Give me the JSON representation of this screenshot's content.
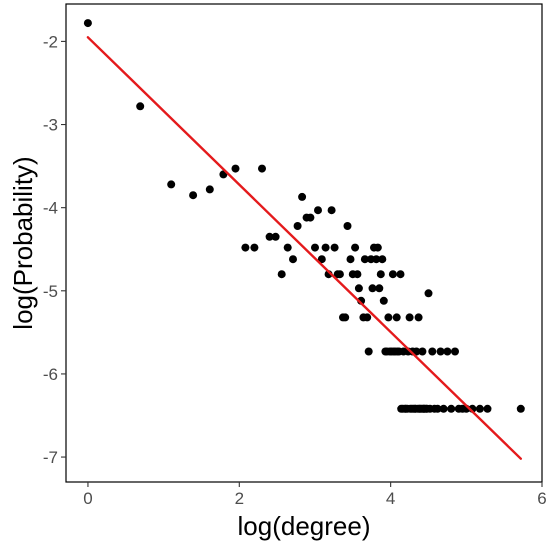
{
  "chart_data": {
    "type": "scatter",
    "title": "",
    "xlabel": "log(degree)",
    "ylabel": "log(Probability)",
    "xlim": [
      -0.29,
      6.0
    ],
    "ylim": [
      -7.3,
      -1.55
    ],
    "xticks": [
      0,
      2,
      4,
      6
    ],
    "yticks": [
      -7,
      -6,
      -5,
      -4,
      -3,
      -2
    ],
    "grid": false,
    "legend": "none",
    "colors": {
      "points": "#000000",
      "fit_line": "#e41a1c",
      "panel_border": "#000000",
      "tick_text": "#4d4d4d"
    },
    "fit_line": {
      "x": [
        0,
        5.72
      ],
      "y": [
        -1.95,
        -7.02
      ]
    },
    "points": [
      [
        0,
        -1.78
      ],
      [
        0.69,
        -2.78
      ],
      [
        1.1,
        -3.72
      ],
      [
        1.39,
        -3.85
      ],
      [
        1.61,
        -3.78
      ],
      [
        1.79,
        -3.6
      ],
      [
        1.95,
        -3.53
      ],
      [
        2.08,
        -4.48
      ],
      [
        2.2,
        -4.48
      ],
      [
        2.3,
        -3.53
      ],
      [
        2.4,
        -4.35
      ],
      [
        2.48,
        -4.35
      ],
      [
        2.56,
        -4.8
      ],
      [
        2.64,
        -4.48
      ],
      [
        2.71,
        -4.62
      ],
      [
        2.77,
        -4.22
      ],
      [
        2.83,
        -3.87
      ],
      [
        2.89,
        -4.12
      ],
      [
        2.94,
        -4.12
      ],
      [
        3.0,
        -4.48
      ],
      [
        3.04,
        -4.03
      ],
      [
        3.09,
        -4.62
      ],
      [
        3.14,
        -4.48
      ],
      [
        3.18,
        -4.8
      ],
      [
        3.22,
        -4.03
      ],
      [
        3.26,
        -4.48
      ],
      [
        3.3,
        -4.8
      ],
      [
        3.33,
        -4.8
      ],
      [
        3.37,
        -5.32
      ],
      [
        3.4,
        -5.32
      ],
      [
        3.43,
        -4.22
      ],
      [
        3.47,
        -4.62
      ],
      [
        3.5,
        -4.8
      ],
      [
        3.53,
        -4.48
      ],
      [
        3.56,
        -4.8
      ],
      [
        3.58,
        -4.97
      ],
      [
        3.61,
        -5.12
      ],
      [
        3.64,
        -5.32
      ],
      [
        3.66,
        -4.62
      ],
      [
        3.69,
        -5.32
      ],
      [
        3.71,
        -5.73
      ],
      [
        3.74,
        -4.62
      ],
      [
        3.76,
        -4.97
      ],
      [
        3.78,
        -4.48
      ],
      [
        3.81,
        -4.62
      ],
      [
        3.83,
        -4.48
      ],
      [
        3.85,
        -4.97
      ],
      [
        3.87,
        -4.8
      ],
      [
        3.89,
        -4.62
      ],
      [
        3.91,
        -5.12
      ],
      [
        3.93,
        -5.73
      ],
      [
        3.95,
        -5.73
      ],
      [
        3.97,
        -5.32
      ],
      [
        3.99,
        -5.73
      ],
      [
        4.01,
        -5.73
      ],
      [
        4.03,
        -4.8
      ],
      [
        4.04,
        -5.73
      ],
      [
        4.06,
        -5.73
      ],
      [
        4.08,
        -5.32
      ],
      [
        4.09,
        -5.73
      ],
      [
        4.11,
        -5.73
      ],
      [
        4.13,
        -4.8
      ],
      [
        4.14,
        -6.42
      ],
      [
        4.16,
        -6.42
      ],
      [
        4.17,
        -5.73
      ],
      [
        4.19,
        -6.42
      ],
      [
        4.2,
        -6.42
      ],
      [
        4.22,
        -6.42
      ],
      [
        4.23,
        -5.73
      ],
      [
        4.25,
        -5.32
      ],
      [
        4.26,
        -6.42
      ],
      [
        4.28,
        -6.42
      ],
      [
        4.29,
        -5.73
      ],
      [
        4.3,
        -6.42
      ],
      [
        4.32,
        -6.42
      ],
      [
        4.33,
        -6.42
      ],
      [
        4.34,
        -5.73
      ],
      [
        4.36,
        -6.42
      ],
      [
        4.37,
        -5.32
      ],
      [
        4.38,
        -6.42
      ],
      [
        4.39,
        -6.42
      ],
      [
        4.41,
        -6.42
      ],
      [
        4.42,
        -5.73
      ],
      [
        4.43,
        -6.42
      ],
      [
        4.44,
        -6.42
      ],
      [
        4.45,
        -6.42
      ],
      [
        4.47,
        -6.42
      ],
      [
        4.48,
        -6.42
      ],
      [
        4.5,
        -5.03
      ],
      [
        4.52,
        -6.42
      ],
      [
        4.55,
        -5.73
      ],
      [
        4.58,
        -6.42
      ],
      [
        4.62,
        -6.42
      ],
      [
        4.66,
        -5.73
      ],
      [
        4.7,
        -6.42
      ],
      [
        4.75,
        -5.73
      ],
      [
        4.8,
        -6.42
      ],
      [
        4.85,
        -5.73
      ],
      [
        4.9,
        -6.42
      ],
      [
        4.95,
        -6.42
      ],
      [
        5.0,
        -6.42
      ],
      [
        5.08,
        -6.42
      ],
      [
        5.18,
        -6.42
      ],
      [
        5.28,
        -6.42
      ],
      [
        5.72,
        -6.42
      ]
    ]
  }
}
